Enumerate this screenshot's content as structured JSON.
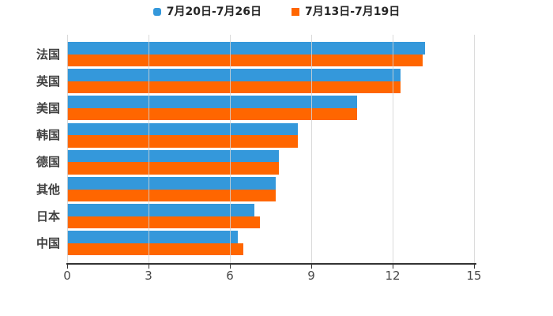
{
  "chart_data": {
    "type": "bar",
    "orientation": "horizontal",
    "title": "",
    "categories": [
      "法国",
      "英国",
      "美国",
      "韩国",
      "德国",
      "其他",
      "日本",
      "中国"
    ],
    "series": [
      {
        "name": "7月20日-7月26日",
        "color": "#3498DB",
        "marker": "rounded-square",
        "values": [
          13.2,
          12.3,
          10.7,
          8.5,
          7.8,
          7.7,
          6.9,
          6.3
        ]
      },
      {
        "name": "7月13日-7月19日",
        "color": "#FF6600",
        "marker": "square",
        "values": [
          13.1,
          12.3,
          10.7,
          8.5,
          7.8,
          7.7,
          7.1,
          6.5
        ]
      }
    ],
    "xlabel": "",
    "ylabel": "",
    "xlim": [
      0,
      15
    ],
    "xticks": [
      0,
      3,
      6,
      9,
      12,
      15
    ],
    "grid": true,
    "legend_position": "top",
    "colors": {
      "axis_line": "#333333",
      "gridline": "#d4d4d4",
      "tick_label": "#4a4a4a",
      "category_label": "#404040",
      "legend_text": "#262626",
      "background": "#ffffff"
    }
  }
}
